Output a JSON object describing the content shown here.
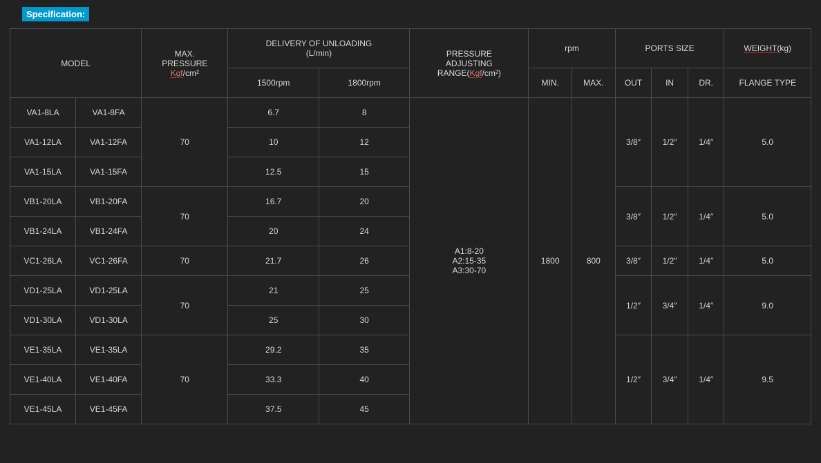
{
  "title": "Specification:",
  "headers": {
    "model": "MODEL",
    "max_pressure_l1": "MAX.",
    "max_pressure_l2": "PRESSURE",
    "max_pressure_unit1": "Kgf",
    "max_pressure_unit2": "/cm²",
    "delivery_l1": "DELIVERY OF UNLOADING",
    "delivery_l2": "(L/min)",
    "delivery_sub1": "1500rpm",
    "delivery_sub2": "1800rpm",
    "par_l1": "PRESSURE",
    "par_l2": "ADJUSTING",
    "par_l3a": "RANGE(",
    "par_l3b": "Kgf",
    "par_l3c": "/cm²)",
    "rpm": "rpm",
    "rpm_min": "MIN.",
    "rpm_max": "MAX.",
    "ports": "PORTS SIZE",
    "ports_out": "OUT",
    "ports_in": "IN",
    "ports_dr": "DR.",
    "weight_a": "WEIGHT",
    "weight_b": "(kg)",
    "flange": "FLANGE TYPE"
  },
  "par_ranges": {
    "l1": "A1:8-20",
    "l2": "A2:15-35",
    "l3": "A3:30-70"
  },
  "rpm_values": {
    "min": "1800",
    "max": "800"
  },
  "groups": [
    {
      "pressure": "70",
      "ports": {
        "out": "3/8″",
        "in": "1/2″",
        "dr": "1/4″"
      },
      "weight": "5.0",
      "rows": [
        {
          "m1": "VA1-8LA",
          "m2": "VA1-8FA",
          "d1": "6.7",
          "d2": "8"
        },
        {
          "m1": "VA1-12LA",
          "m2": "VA1-12FA",
          "d1": "10",
          "d2": "12"
        },
        {
          "m1": "VA1-15LA",
          "m2": "VA1-15FA",
          "d1": "12.5",
          "d2": "15"
        }
      ]
    },
    {
      "pressure": "70",
      "ports": {
        "out": "3/8″",
        "in": "1/2″",
        "dr": "1/4″"
      },
      "weight": "5.0",
      "rows": [
        {
          "m1": "VB1-20LA",
          "m2": "VB1-20FA",
          "d1": "16.7",
          "d2": "20"
        },
        {
          "m1": "VB1-24LA",
          "m2": "VB1-24FA",
          "d1": "20",
          "d2": "24"
        }
      ]
    },
    {
      "pressure": "70",
      "ports": {
        "out": "3/8″",
        "in": "1/2″",
        "dr": "1/4″"
      },
      "weight": "5.0",
      "rows": [
        {
          "m1": "VC1-26LA",
          "m2": "VC1-26FA",
          "d1": "21.7",
          "d2": "26"
        }
      ]
    },
    {
      "pressure": "70",
      "ports": {
        "out": "1/2″",
        "in": "3/4″",
        "dr": "1/4″"
      },
      "weight": "9.0",
      "rows": [
        {
          "m1": "VD1-25LA",
          "m2": "VD1-25LA",
          "d1": "21",
          "d2": "25"
        },
        {
          "m1": "VD1-30LA",
          "m2": "VD1-30LA",
          "d1": "25",
          "d2": "30"
        }
      ]
    },
    {
      "pressure": "70",
      "ports": {
        "out": "1/2″",
        "in": "3/4″",
        "dr": "1/4″"
      },
      "weight": "9.5",
      "rows": [
        {
          "m1": "VE1-35LA",
          "m2": "VE1-35LA",
          "d1": "29.2",
          "d2": "35"
        },
        {
          "m1": "VE1-40LA",
          "m2": "VE1-40FA",
          "d1": "33.3",
          "d2": "40"
        },
        {
          "m1": "VE1-45LA",
          "m2": "VE1-45FA",
          "d1": "37.5",
          "d2": "45"
        }
      ]
    }
  ]
}
